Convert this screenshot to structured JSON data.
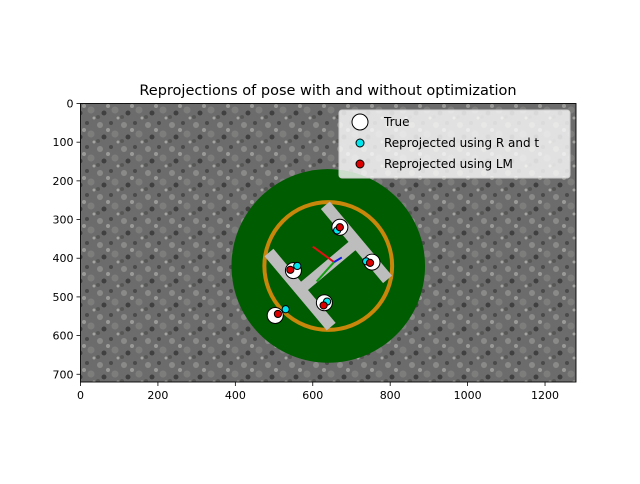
{
  "chart_data": {
    "type": "scatter",
    "title": "Reprojections of pose with and without optimization",
    "xlabel": "",
    "ylabel": "",
    "xlim": [
      0,
      1280
    ],
    "ylim": [
      720,
      0
    ],
    "y_inverted": true,
    "x_ticks": [
      0,
      200,
      400,
      600,
      800,
      1000,
      1200
    ],
    "y_ticks": [
      0,
      100,
      200,
      300,
      400,
      500,
      600,
      700
    ],
    "grid": false,
    "legend_position": "upper-right",
    "background": "aerial photo of asphalt with a green circular landing pad, orange ring and grey H marker",
    "series": [
      {
        "name": "True",
        "marker": "large hollow circle",
        "fill": "#ffffff",
        "edge": "#000000",
        "x": [
          670,
          550,
          753,
          630,
          503
        ],
        "y": [
          320,
          432,
          410,
          515,
          548
        ]
      },
      {
        "name": "Reprojected using R and t",
        "marker": "small circle",
        "fill": "#00e5ee",
        "edge": "#000000",
        "x": [
          663,
          560,
          738,
          637,
          530
        ],
        "y": [
          328,
          420,
          408,
          512,
          532
        ]
      },
      {
        "name": "Reprojected using LM",
        "marker": "small circle",
        "fill": "#dd0000",
        "edge": "#000000",
        "x": [
          670,
          542,
          748,
          628,
          510
        ],
        "y": [
          320,
          430,
          412,
          522,
          544
        ]
      }
    ]
  }
}
